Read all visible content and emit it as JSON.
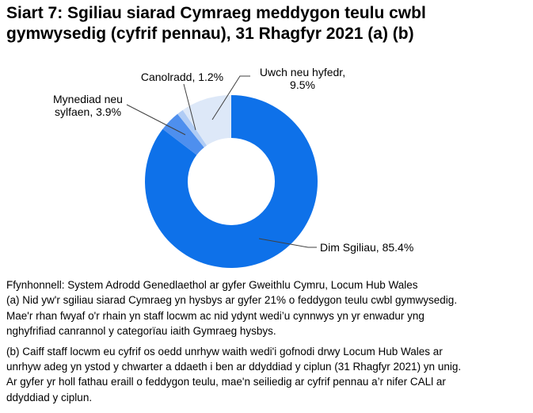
{
  "title": {
    "full": "Siart 7: Sgiliau siarad Cymraeg meddygon teulu cwbl gymwysedig (cyfrif pennau), 31 Rhagfyr 2021 (a) (b)",
    "lines": [
      "Siart 7: Sgiliau siarad Cymraeg meddygon teulu cwbl",
      "gymwysedig (cyfrif pennau), 31 Rhagfyr 2021 (a) (b)"
    ]
  },
  "chart_data": {
    "type": "pie",
    "subtype": "donut",
    "title": "Siart 7: Sgiliau siarad Cymraeg meddygon teulu cwbl gymwysedig (cyfrif pennau), 31 Rhagfyr 2021 (a) (b)",
    "unit": "%",
    "start_angle_deg": 0,
    "direction": "clockwise",
    "hole_ratio": 0.5,
    "legend_position": "none",
    "slices": [
      {
        "label": "Dim Sgiliau",
        "value": 85.4,
        "color": "#0e71e9",
        "display_label": "Dim Sgiliau, 85.4%"
      },
      {
        "label": "Mynediad neu sylfaen",
        "value": 3.9,
        "color": "#4e8fee",
        "display_label": "Mynediad neu\nsylfaen, 3.9%"
      },
      {
        "label": "Canolradd",
        "value": 1.2,
        "color": "#b0ccf5",
        "display_label": "Canolradd, 1.2%"
      },
      {
        "label": "Uwch neu hyfedr",
        "value": 9.5,
        "color": "#dde8f8",
        "display_label": "Uwch neu hyfedr,\n9.5%"
      }
    ]
  },
  "notes": {
    "source_line": "Ffynhonnell: System Adrodd Genedlaethol ar gyfer Gweithlu Cymru, Locum Hub Wales",
    "note_a_lines": [
      "(a) Nid yw'r sgiliau siarad Cymraeg yn hysbys ar gyfer 21% o feddygon teulu cwbl gymwysedig.",
      "Mae'r rhan fwyaf o'r rhain yn staff locwm ac nid ydynt wedi’u cynnwys yn yr enwadur yng",
      "nghyfrifiad canrannol y categorïau iaith Gymraeg hysbys."
    ],
    "note_b_lines": [
      "(b) Caiff staff locwm eu cyfrif os oedd unrhyw waith wedi'i gofnodi drwy Locum Hub Wales ar",
      "unrhyw adeg yn ystod y chwarter a ddaeth i ben ar ddyddiad y ciplun (31 Rhagfyr 2021) yn unig.",
      "Ar gyfer yr holl fathau eraill o feddygon teulu, mae'n seiliedig ar cyfrif pennau a’r nifer CALl ar",
      "ddyddiad y ciplun."
    ]
  }
}
